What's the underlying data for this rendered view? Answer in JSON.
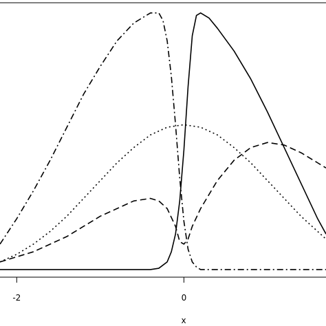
{
  "chart_data": {
    "type": "line",
    "xlabel": "x",
    "ylabel": "",
    "xlim": [
      -2.2,
      1.7
    ],
    "ylim": [
      -0.03,
      1.05
    ],
    "xticks": [
      {
        "value": -2,
        "label": "-2"
      },
      {
        "value": 0,
        "label": "0"
      }
    ],
    "grid": false,
    "series": [
      {
        "style": "solid",
        "x": [
          -2.2,
          -0.4,
          -0.3,
          -0.2,
          -0.15,
          -0.1,
          -0.05,
          0.0,
          0.05,
          0.1,
          0.15,
          0.2,
          0.3,
          0.4,
          0.6,
          0.8,
          1.0,
          1.2,
          1.4,
          1.6,
          1.7
        ],
        "y": [
          0.0,
          0.0,
          0.005,
          0.03,
          0.07,
          0.14,
          0.27,
          0.47,
          0.72,
          0.92,
          1.0,
          1.01,
          0.99,
          0.95,
          0.86,
          0.75,
          0.62,
          0.48,
          0.34,
          0.2,
          0.14
        ]
      },
      {
        "style": "dashdot",
        "x": [
          -2.2,
          -2.0,
          -1.8,
          -1.6,
          -1.4,
          -1.2,
          -1.0,
          -0.8,
          -0.6,
          -0.4,
          -0.3,
          -0.25,
          -0.2,
          -0.15,
          -0.1,
          -0.05,
          0.0,
          0.05,
          0.1,
          0.15,
          0.2,
          0.3,
          0.5,
          1.0,
          1.7
        ],
        "y": [
          0.1,
          0.2,
          0.31,
          0.43,
          0.56,
          0.69,
          0.8,
          0.9,
          0.97,
          1.01,
          1.01,
          0.98,
          0.9,
          0.76,
          0.57,
          0.36,
          0.19,
          0.08,
          0.03,
          0.01,
          0.0,
          0.0,
          0.0,
          0.0,
          0.0
        ]
      },
      {
        "style": "dotted",
        "x": [
          -2.2,
          -2.0,
          -1.8,
          -1.6,
          -1.4,
          -1.2,
          -1.0,
          -0.8,
          -0.6,
          -0.4,
          -0.2,
          0.0,
          0.2,
          0.4,
          0.6,
          0.8,
          1.0,
          1.2,
          1.4,
          1.6,
          1.7
        ],
        "y": [
          0.03,
          0.06,
          0.1,
          0.15,
          0.21,
          0.28,
          0.35,
          0.42,
          0.48,
          0.53,
          0.56,
          0.57,
          0.56,
          0.53,
          0.48,
          0.42,
          0.35,
          0.28,
          0.21,
          0.15,
          0.12
        ]
      },
      {
        "style": "dashed",
        "x": [
          -2.2,
          -2.0,
          -1.8,
          -1.6,
          -1.4,
          -1.2,
          -1.0,
          -0.8,
          -0.6,
          -0.4,
          -0.3,
          -0.2,
          -0.1,
          -0.05,
          0.0,
          0.05,
          0.1,
          0.2,
          0.4,
          0.6,
          0.8,
          1.0,
          1.2,
          1.4,
          1.6,
          1.7
        ],
        "y": [
          0.03,
          0.05,
          0.07,
          0.1,
          0.13,
          0.17,
          0.21,
          0.24,
          0.27,
          0.28,
          0.27,
          0.24,
          0.17,
          0.11,
          0.1,
          0.12,
          0.17,
          0.24,
          0.35,
          0.43,
          0.48,
          0.5,
          0.49,
          0.46,
          0.42,
          0.4
        ]
      }
    ]
  }
}
